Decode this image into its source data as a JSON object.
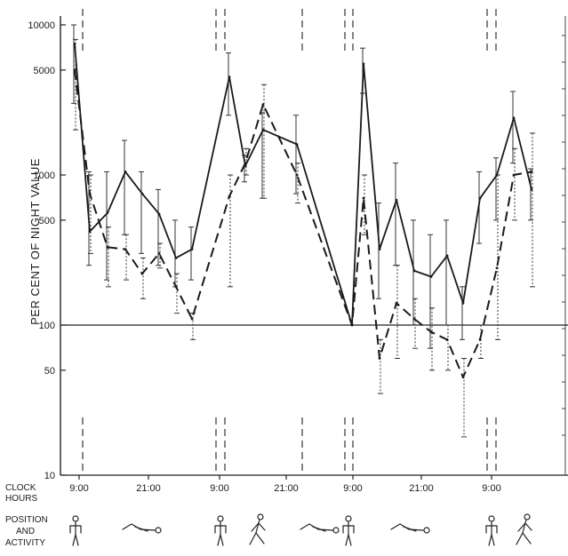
{
  "chart_data": {
    "type": "line",
    "title": "",
    "ylabel": "PER CENT OF NIGHT VALUE",
    "xlabel": "",
    "y_scale": "log",
    "ylim": [
      10,
      10000
    ],
    "y_ticks": [
      10,
      50,
      100,
      500,
      1000,
      5000,
      10000
    ],
    "x_tick_labels": [
      "9:00",
      "21:00",
      "9:00",
      "21:00",
      "9:00",
      "21:00",
      "9:00"
    ],
    "reference_line": 100,
    "grid": false,
    "legend": "none",
    "series": [
      {
        "style": "solid",
        "values": [
          7500,
          420,
          560,
          1050,
          750,
          550,
          280,
          320,
          4500,
          1150,
          2000,
          1600,
          100,
          5500,
          320,
          680,
          230,
          210,
          290,
          140,
          700,
          1000,
          2400,
          800
        ],
        "error_low": [
          3000,
          250,
          200,
          400,
          300,
          250,
          180,
          200,
          2500,
          900,
          700,
          750,
          100,
          3500,
          150,
          250,
          100,
          70,
          100,
          80,
          350,
          500,
          1200,
          500
        ],
        "error_high": [
          10000,
          1050,
          1050,
          1700,
          1050,
          800,
          500,
          450,
          6500,
          1350,
          2600,
          2500,
          100,
          7000,
          650,
          1200,
          500,
          400,
          500,
          180,
          1050,
          1300,
          3600,
          1100
        ]
      },
      {
        "style": "dashed",
        "values": [
          5000,
          750,
          330,
          320,
          220,
          300,
          180,
          110,
          720,
          1200,
          2950,
          1000,
          100,
          700,
          60,
          140,
          110,
          90,
          80,
          45,
          80,
          240,
          1000,
          1050
        ],
        "error_low": [
          2000,
          300,
          180,
          200,
          150,
          240,
          120,
          80,
          180,
          1000,
          700,
          650,
          100,
          400,
          35,
          60,
          70,
          50,
          50,
          18,
          60,
          80,
          500,
          180
        ],
        "error_high": [
          8000,
          1000,
          450,
          400,
          280,
          350,
          220,
          120,
          1000,
          1500,
          4000,
          1200,
          100,
          1000,
          80,
          250,
          150,
          130,
          100,
          60,
          100,
          1000,
          1500,
          1900
        ]
      }
    ],
    "activity_rows": {
      "clock_label": "CLOCK\nHOURS",
      "position_label": "POSITION\nAND\nACTIVITY",
      "sequence": [
        "standing",
        "lying",
        "standing",
        "walking",
        "lying",
        "standing",
        "lying",
        "standing",
        "walking"
      ]
    }
  }
}
